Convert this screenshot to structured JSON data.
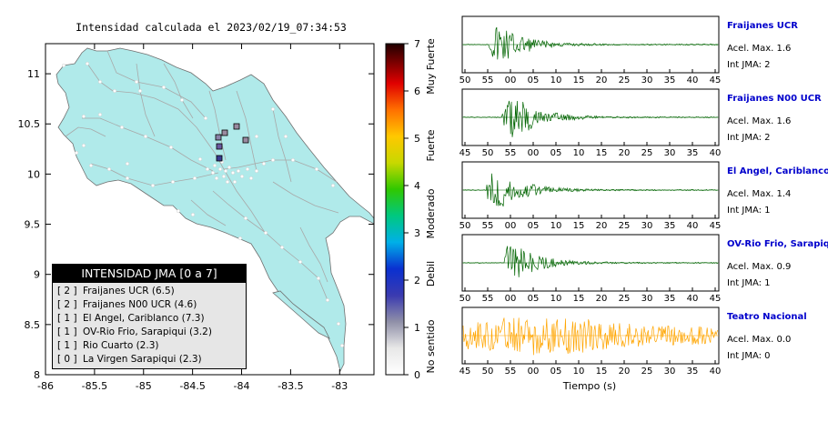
{
  "map": {
    "title": "Intensidad calculada el 2023/02/19_07:34:53",
    "x_ticks": [
      "-86",
      "-85.5",
      "-85",
      "-84.5",
      "-84",
      "-83.5",
      "-83"
    ],
    "y_ticks": [
      "11",
      "10.5",
      "10",
      "9.5",
      "9",
      "8.5",
      "8"
    ],
    "legend": {
      "title": "INTENSIDAD JMA [0 a 7]",
      "items": [
        {
          "jma": "[ 2 ]",
          "label": "Fraijanes UCR (6.5)"
        },
        {
          "jma": "[ 2 ]",
          "label": "Fraijanes N00 UCR (4.6)"
        },
        {
          "jma": "[ 1 ]",
          "label": "El Angel, Cariblanco (7.3)"
        },
        {
          "jma": "[ 1 ]",
          "label": "OV-Rio Frio, Sarapiqui (3.2)"
        },
        {
          "jma": "[ 1 ]",
          "label": "Rio Cuarto (2.3)"
        },
        {
          "jma": "[ 0 ]",
          "label": "La Virgen Sarapiqui (2.3)"
        }
      ]
    },
    "colors": {
      "land": "#b0eaea",
      "roads": "#a8a8a8",
      "frame": "#000000"
    }
  },
  "colorbar": {
    "ticks": [
      "0",
      "1",
      "2",
      "3",
      "4",
      "5",
      "6",
      "7"
    ],
    "labels": [
      "No sentido",
      "Debil",
      "Moderado",
      "Fuerte",
      "Muy Fuerte"
    ]
  },
  "chart_data": [
    {
      "type": "line",
      "xlabel": "Tiempo (s)",
      "panels": [
        {
          "station": "Fraijanes UCR",
          "acel": "Acel. Max. 1.6",
          "jma": "Int JMA: 2",
          "color": "#006400",
          "ticks": [
            "50",
            "55",
            "00",
            "05",
            "10",
            "15",
            "20",
            "25",
            "30",
            "35",
            "40",
            "45"
          ],
          "first_tick_s": 50,
          "onset_s": 59,
          "peak_s": 2
        },
        {
          "station": "Fraijanes N00 UCR",
          "acel": "Acel. Max. 1.6",
          "jma": "Int JMA: 2",
          "color": "#006400",
          "ticks": [
            "45",
            "50",
            "55",
            "00",
            "05",
            "10",
            "15",
            "20",
            "25",
            "30",
            "35",
            "40"
          ],
          "first_tick_s": 45,
          "onset_s": 59,
          "peak_s": 3
        },
        {
          "station": "El Angel, Cariblanco",
          "acel": "Acel. Max. 1.4",
          "jma": "Int JMA: 1",
          "color": "#006400",
          "ticks": [
            "50",
            "55",
            "00",
            "05",
            "10",
            "15",
            "20",
            "25",
            "30",
            "35",
            "40",
            "45"
          ],
          "first_tick_s": 50,
          "onset_s": 58,
          "peak_s": 1
        },
        {
          "station": "OV-Rio Frio, Sarapiqui",
          "acel": "Acel. Max. 0.9",
          "jma": "Int JMA: 1",
          "color": "#006400",
          "ticks": [
            "50",
            "55",
            "00",
            "05",
            "10",
            "15",
            "20",
            "25",
            "30",
            "35",
            "40",
            "45"
          ],
          "first_tick_s": 50,
          "onset_s": 65,
          "peak_s": 6
        },
        {
          "station": "Teatro Nacional",
          "acel": "Acel. Max. 0.0",
          "jma": "Int JMA: 0",
          "color": "#ffa500",
          "ticks": [
            "45",
            "50",
            "55",
            "00",
            "05",
            "10",
            "15",
            "20",
            "25",
            "30",
            "35",
            "40"
          ],
          "first_tick_s": 45,
          "onset_s": 45,
          "peak_s": 13
        }
      ]
    }
  ]
}
